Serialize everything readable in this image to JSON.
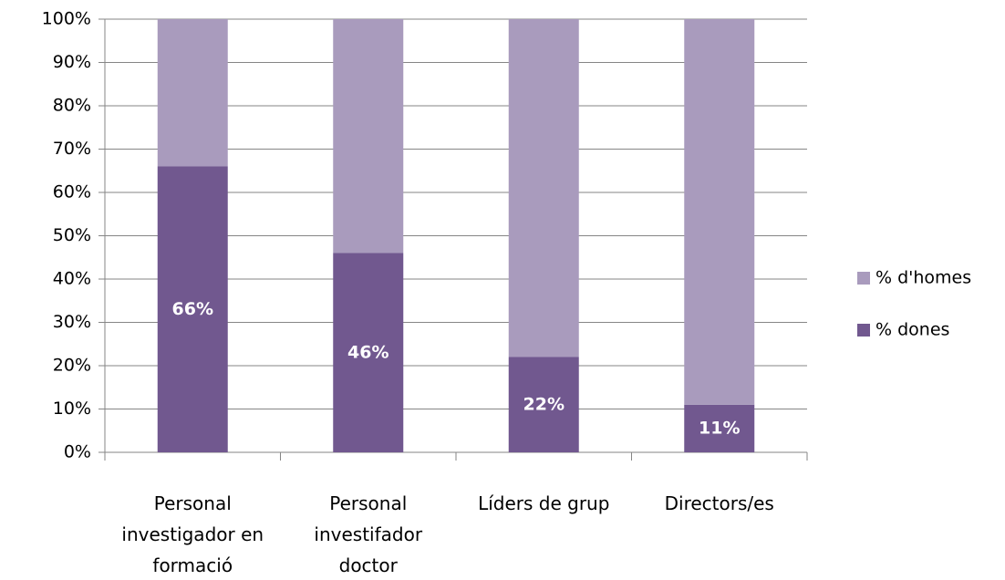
{
  "chart_data": {
    "type": "stacked_bar",
    "categories": [
      "Personal investigador en formació",
      "Personal investifador doctor",
      "Líders de grup",
      "Directors/es"
    ],
    "series": [
      {
        "name": "% dones",
        "color": "#71588f",
        "values": [
          66,
          46,
          22,
          11
        ],
        "value_labels": [
          "66%",
          "46%",
          "22%",
          "11%"
        ]
      },
      {
        "name": "% d'homes",
        "color": "#a99bbd",
        "values": [
          34,
          54,
          78,
          89
        ]
      }
    ],
    "ylim": [
      0,
      100
    ],
    "yticks": [
      {
        "value": 0,
        "label": "0%"
      },
      {
        "value": 10,
        "label": "10%"
      },
      {
        "value": 20,
        "label": "20%"
      },
      {
        "value": 30,
        "label": "30%"
      },
      {
        "value": 40,
        "label": "40%"
      },
      {
        "value": 50,
        "label": "50%"
      },
      {
        "value": 60,
        "label": "60%"
      },
      {
        "value": 70,
        "label": "70%"
      },
      {
        "value": 80,
        "label": "80%"
      },
      {
        "value": 90,
        "label": "90%"
      },
      {
        "value": 100,
        "label": "100%"
      }
    ],
    "grid": true,
    "legend": "right"
  }
}
